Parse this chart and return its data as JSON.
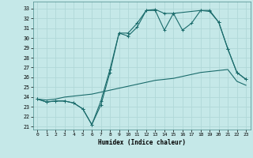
{
  "xlabel": "Humidex (Indice chaleur)",
  "bg_color": "#c5e8e8",
  "grid_color": "#b0d8d8",
  "line_color": "#1a6b6b",
  "xlim": [
    -0.5,
    23.5
  ],
  "ylim": [
    20.7,
    33.7
  ],
  "yticks": [
    21,
    22,
    23,
    24,
    25,
    26,
    27,
    28,
    29,
    30,
    31,
    32,
    33
  ],
  "xticks": [
    0,
    1,
    2,
    3,
    4,
    5,
    6,
    7,
    8,
    9,
    10,
    11,
    12,
    13,
    14,
    15,
    16,
    17,
    18,
    19,
    20,
    21,
    22,
    23
  ],
  "series1_x": [
    0,
    1,
    2,
    3,
    4,
    5,
    6,
    7,
    8,
    9,
    10,
    11,
    12,
    13,
    14,
    15,
    16,
    17,
    18,
    19,
    20,
    21,
    22,
    23
  ],
  "series1_y": [
    23.8,
    23.5,
    23.6,
    23.6,
    23.4,
    22.8,
    21.2,
    23.2,
    26.5,
    30.5,
    30.2,
    31.1,
    32.8,
    32.9,
    32.5,
    32.5,
    30.8,
    31.5,
    32.8,
    32.7,
    31.6,
    28.9,
    26.5,
    25.8
  ],
  "series2_x": [
    0,
    1,
    2,
    3,
    4,
    5,
    6,
    7,
    8,
    9,
    10,
    11,
    12,
    13,
    14,
    15,
    16,
    17,
    18,
    19,
    20,
    21,
    22,
    23
  ],
  "series2_y": [
    23.8,
    23.7,
    23.8,
    24.0,
    24.1,
    24.2,
    24.3,
    24.5,
    24.7,
    24.9,
    25.1,
    25.3,
    25.5,
    25.7,
    25.8,
    25.9,
    26.1,
    26.3,
    26.5,
    26.6,
    26.7,
    26.8,
    25.6,
    25.2
  ],
  "series3_x": [
    0,
    1,
    2,
    3,
    4,
    5,
    6,
    7,
    8,
    9,
    10,
    11,
    12,
    13,
    14,
    15,
    18,
    19,
    20,
    21,
    22,
    23
  ],
  "series3_y": [
    23.8,
    23.5,
    23.6,
    23.6,
    23.4,
    22.8,
    21.2,
    23.6,
    26.8,
    30.5,
    30.5,
    31.5,
    32.8,
    32.8,
    30.8,
    32.5,
    32.8,
    32.8,
    31.6,
    28.9,
    26.5,
    25.8
  ]
}
